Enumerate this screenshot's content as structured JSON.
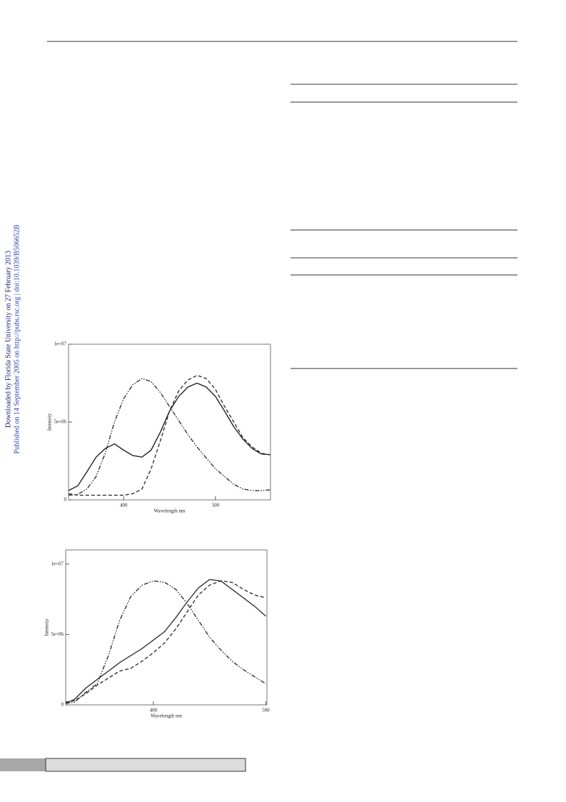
{
  "sidebar": {
    "line1": "Downloaded by Florida State University on 27 February 2013",
    "line2": "Published on 14 September 2005 on http://pubs.rsc.org | doi:10.1039/B506652B"
  },
  "chart_data": [
    {
      "type": "line",
      "xlabel": "Wavelength nm",
      "ylabel": "Intensity",
      "x": [
        340,
        350,
        360,
        370,
        380,
        390,
        400,
        410,
        420,
        430,
        440,
        450,
        460,
        470,
        480,
        490,
        500,
        510,
        520,
        530,
        540,
        550,
        560
      ],
      "xlim": [
        340,
        560
      ],
      "xticks": [
        400,
        500
      ],
      "ylim": [
        0,
        10000000
      ],
      "yticks": [
        0,
        {
          "value": 5000000,
          "label": "5e+06"
        },
        {
          "value": 10000000,
          "label": "1e+07"
        }
      ],
      "series": [
        {
          "color": "#222222",
          "dash": "solid",
          "values": [
            600000,
            900000,
            1800000,
            2750000,
            3300000,
            3600000,
            3200000,
            2850000,
            2750000,
            3200000,
            4350000,
            5700000,
            6650000,
            7250000,
            7500000,
            7250000,
            6650000,
            5700000,
            4700000,
            3900000,
            3300000,
            2950000,
            2900000
          ]
        },
        {
          "color": "#333333",
          "dash": "dashed",
          "values": [
            400000,
            300000,
            300000,
            300000,
            300000,
            300000,
            300000,
            400000,
            700000,
            2000000,
            3800000,
            5700000,
            7000000,
            7700000,
            8000000,
            7800000,
            7100000,
            6000000,
            5000000,
            4000000,
            3400000,
            3000000,
            2900000
          ]
        },
        {
          "color": "#333333",
          "dash": "dashdot",
          "values": [
            300000,
            350000,
            700000,
            1500000,
            3000000,
            5000000,
            6500000,
            7400000,
            7800000,
            7600000,
            6900000,
            6000000,
            5100000,
            4200000,
            3400000,
            2700000,
            2000000,
            1500000,
            1000000,
            700000,
            600000,
            600000,
            650000
          ]
        }
      ]
    },
    {
      "type": "line",
      "xlabel": "Wavelength nm",
      "ylabel": "Intensity",
      "x": [
        322,
        330,
        340,
        350,
        360,
        370,
        380,
        390,
        400,
        410,
        420,
        430,
        440,
        450,
        460,
        470,
        480,
        490,
        500
      ],
      "xlim": [
        322,
        501
      ],
      "xticks": [
        400,
        500
      ],
      "ylim": [
        0,
        11000000
      ],
      "yticks": [
        0,
        {
          "value": 5000000,
          "label": "5e+06"
        },
        {
          "value": 10000000,
          "label": "1e+07"
        }
      ],
      "series": [
        {
          "color": "#333333",
          "dash": "solid",
          "values": [
            100000,
            400000,
            1200000,
            1800000,
            2400000,
            3000000,
            3500000,
            4000000,
            4600000,
            5200000,
            6200000,
            7300000,
            8300000,
            8900000,
            8800000,
            8200000,
            7600000,
            7000000,
            6300000
          ]
        },
        {
          "color": "#333333",
          "dash": "dashed",
          "values": [
            200000,
            300000,
            800000,
            1400000,
            1900000,
            2400000,
            2600000,
            3100000,
            3700000,
            4400000,
            5400000,
            6600000,
            7800000,
            8500000,
            8800000,
            8700000,
            8200000,
            7800000,
            7600000
          ]
        },
        {
          "color": "#333333",
          "dash": "dashdot",
          "values": [
            100000,
            200000,
            900000,
            1500000,
            3500000,
            6000000,
            7700000,
            8500000,
            8800000,
            8700000,
            8200000,
            7200000,
            6000000,
            4800000,
            3900000,
            3100000,
            2500000,
            2000000,
            1500000
          ]
        }
      ]
    }
  ]
}
